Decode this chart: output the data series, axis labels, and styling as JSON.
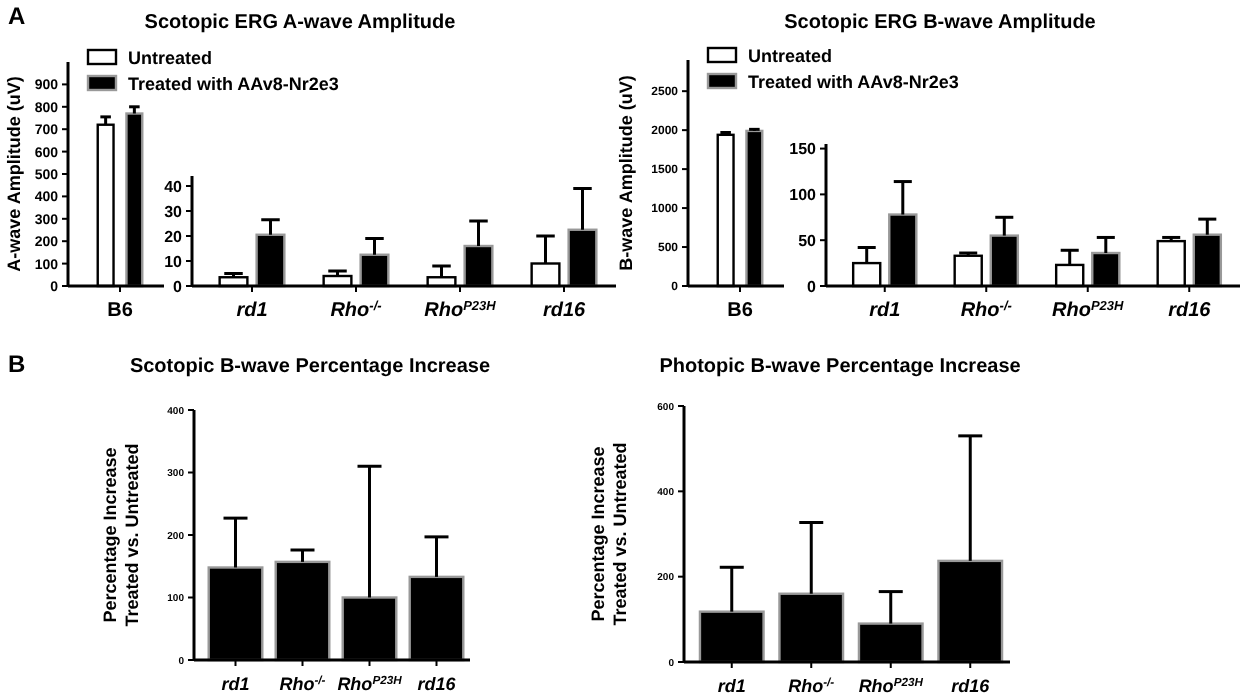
{
  "chart_data": [
    {
      "type": "bar",
      "title": "Scotopic ERG A-wave Amplitude",
      "ylabel": "A-wave Amplitude (uV)",
      "annotations": [
        "A"
      ],
      "categories": [
        "B6"
      ],
      "legend": "top right",
      "ylim": [
        0,
        1000
      ],
      "yticks": [
        0,
        100,
        200,
        300,
        400,
        500,
        600,
        700,
        800,
        900
      ],
      "series": [
        {
          "name": "Untreated",
          "color": "#ffffff",
          "values": [
            720
          ],
          "errors": [
            [
              720,
              755
            ]
          ]
        },
        {
          "name": "Treated with AAv8-Nr2e3",
          "color": "#000000",
          "values": [
            770
          ],
          "errors": [
            [
              770,
              800
            ]
          ]
        }
      ]
    },
    {
      "type": "bar",
      "categories": [
        "rd1",
        "Rho$^{-/-}$",
        "Rho$^{P23H}$",
        "rd16"
      ],
      "ylim": [
        0,
        44
      ],
      "yticks": [
        0,
        10,
        20,
        30,
        40
      ],
      "series": [
        {
          "color": "#ffffff",
          "values": [
            3.5,
            4,
            3.5,
            9
          ],
          "errors": [
            [
              3.5,
              5
            ],
            [
              4,
              6
            ],
            [
              3.5,
              8
            ],
            [
              9,
              20
            ]
          ]
        },
        {
          "color": "#000000",
          "values": [
            20.5,
            12.5,
            16,
            22.5
          ],
          "errors": [
            [
              20.5,
              26.5
            ],
            [
              12.5,
              19
            ],
            [
              16,
              26
            ],
            [
              22.5,
              39
            ]
          ]
        }
      ]
    },
    {
      "type": "bar",
      "title": "Scotopic ERG B-wave Amplitude",
      "ylabel": "B-wave Amplitude (uV)",
      "categories": [
        "B6"
      ],
      "legend": "top right",
      "ylim": [
        0,
        2900
      ],
      "yticks": [
        0,
        500,
        1000,
        1500,
        2000,
        2500
      ],
      "series": [
        {
          "name": "Untreated",
          "color": "#ffffff",
          "values": [
            1940
          ],
          "errors": [
            [
              1940,
              1970
            ]
          ]
        },
        {
          "name": "Treated with AAv8-Nr2e3",
          "color": "#000000",
          "values": [
            1990
          ],
          "errors": [
            [
              1990,
              2010
            ]
          ]
        }
      ]
    },
    {
      "type": "bar",
      "categories": [
        "rd1",
        "Rho$^{-/-}$",
        "Rho$^{P23H}$",
        "rd16"
      ],
      "ylim": [
        0,
        155
      ],
      "yticks": [
        0,
        50,
        100,
        150
      ],
      "series": [
        {
          "color": "#ffffff",
          "values": [
            25,
            33,
            23,
            49
          ],
          "errors": [
            [
              25,
              42
            ],
            [
              33,
              36
            ],
            [
              23,
              39
            ],
            [
              49,
              53
            ]
          ]
        },
        {
          "color": "#000000",
          "values": [
            78,
            55,
            36,
            56
          ],
          "errors": [
            [
              78,
              114
            ],
            [
              55,
              75
            ],
            [
              36,
              53
            ],
            [
              56,
              73
            ]
          ]
        }
      ]
    },
    {
      "type": "bar",
      "title": "Scotopic B-wave Percentage Increase",
      "ylabel": "Percentage Increase\nTreated vs. Untreated",
      "annotations": [
        "B"
      ],
      "categories": [
        "rd1",
        "Rho$^{-/-}$",
        "Rho$^{P23H}$",
        "rd16"
      ],
      "ylim": [
        0,
        400
      ],
      "yticks": [
        0,
        100,
        200,
        300,
        400
      ],
      "series": [
        {
          "color": "#000000",
          "values": [
            148,
            157,
            100,
            133
          ],
          "errors": [
            [
              148,
              227
            ],
            [
              157,
              176
            ],
            [
              100,
              310
            ],
            [
              133,
              197
            ]
          ]
        }
      ]
    },
    {
      "type": "bar",
      "title": "Photopic B-wave Percentage Increase",
      "ylabel": "Percentage Increase\nTreated vs. Untreated",
      "categories": [
        "rd1",
        "Rho$^{-/-}$",
        "Rho$^{P23H}$",
        "rd16"
      ],
      "ylim": [
        0,
        600
      ],
      "yticks": [
        0,
        200,
        400,
        600
      ],
      "series": [
        {
          "color": "#000000",
          "values": [
            118,
            160,
            90,
            237
          ],
          "errors": [
            [
              118,
              222
            ],
            [
              160,
              327
            ],
            [
              90,
              165
            ],
            [
              237,
              530
            ]
          ]
        }
      ]
    }
  ]
}
